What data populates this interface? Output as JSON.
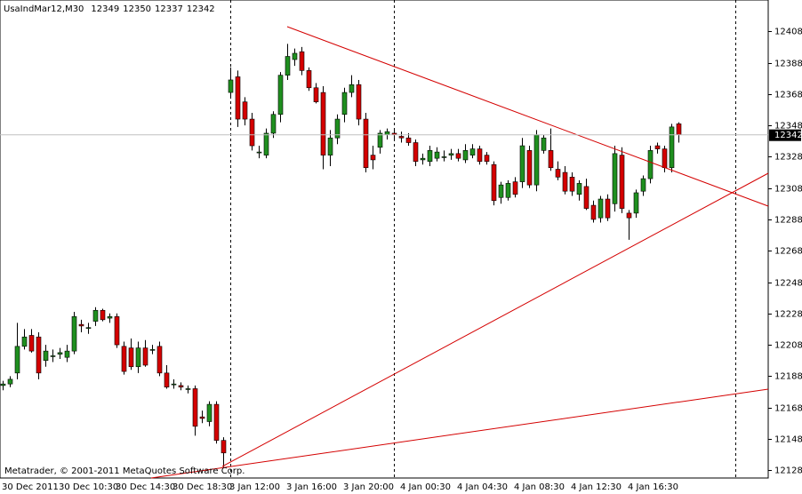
{
  "chart_data": {
    "type": "candlestick",
    "title": "UsaIndMar12,M30",
    "footer": "Metatrader, © 2001-2011 MetaQuotes Software Corp.",
    "up_color": "#1f8f1f",
    "down_color": "#d40000",
    "wick_color": "#000000",
    "ylim": [
      12123,
      12428
    ],
    "yticks": [
      12128,
      12148,
      12168,
      12188,
      12208,
      12228,
      12248,
      12268,
      12288,
      12308,
      12328,
      12348,
      12368,
      12388,
      12408
    ],
    "categories": [
      "30 Dec 2011",
      null,
      null,
      null,
      null,
      null,
      null,
      null,
      "30 Dec 10:30",
      null,
      null,
      null,
      null,
      null,
      null,
      null,
      "30 Dec 14:30",
      null,
      null,
      null,
      null,
      null,
      null,
      null,
      "30 Dec 18:30",
      null,
      null,
      null,
      null,
      null,
      null,
      null,
      "3 Jan 12:00",
      null,
      null,
      null,
      null,
      null,
      null,
      null,
      "3 Jan 16:00",
      null,
      null,
      null,
      null,
      null,
      null,
      null,
      "3 Jan 20:00",
      null,
      null,
      null,
      null,
      null,
      null,
      null,
      "4 Jan 00:30",
      null,
      null,
      null,
      null,
      null,
      null,
      null,
      "4 Jan 04:30",
      null,
      null,
      null,
      null,
      null,
      null,
      null,
      "4 Jan 08:30",
      null,
      null,
      null,
      null,
      null,
      null,
      null,
      "4 Jan 12:30",
      null,
      null,
      null,
      null,
      null,
      null,
      null,
      "4 Jan 16:30",
      null,
      null,
      null,
      null,
      null,
      null,
      null
    ],
    "ohlc": [
      [
        12182,
        12185,
        12179,
        12183
      ],
      [
        12183,
        12188,
        12181,
        12186
      ],
      [
        12190,
        12222,
        12186,
        12207
      ],
      [
        12207,
        12218,
        12205,
        12213
      ],
      [
        12214,
        12218,
        12203,
        12204
      ],
      [
        12213,
        12216,
        12186,
        12190
      ],
      [
        12198,
        12208,
        12194,
        12204
      ],
      [
        12201,
        12205,
        12197,
        12201
      ],
      [
        12202,
        12206,
        12199,
        12203
      ],
      [
        12200,
        12208,
        12197,
        12204
      ],
      [
        12204,
        12229,
        12202,
        12226
      ],
      [
        12221,
        12224,
        12216,
        12220
      ],
      [
        12219,
        12222,
        12215,
        12219
      ],
      [
        12223,
        12232,
        12220,
        12230
      ],
      [
        12230,
        12231,
        12223,
        12224
      ],
      [
        12225,
        12228,
        12222,
        12226
      ],
      [
        12226,
        12228,
        12206,
        12208
      ],
      [
        12207,
        12210,
        12189,
        12191
      ],
      [
        12206,
        12212,
        12192,
        12194
      ],
      [
        12194,
        12210,
        12190,
        12206
      ],
      [
        12206,
        12211,
        12194,
        12195
      ],
      [
        12205,
        12208,
        12202,
        12205
      ],
      [
        12207,
        12210,
        12188,
        12190
      ],
      [
        12190,
        12195,
        12180,
        12181
      ],
      [
        12183,
        12186,
        12180,
        12183
      ],
      [
        12182,
        12184,
        12179,
        12181
      ],
      [
        12180,
        12182,
        12177,
        12180
      ],
      [
        12180,
        12182,
        12150,
        12156
      ],
      [
        12162,
        12166,
        12158,
        12161
      ],
      [
        12159,
        12172,
        12156,
        12170
      ],
      [
        12170,
        12172,
        12145,
        12147
      ],
      [
        12147,
        12149,
        12130,
        12139
      ],
      [
        12369,
        12385,
        12366,
        12377
      ],
      [
        12379,
        12383,
        12347,
        12352
      ],
      [
        12363,
        12366,
        12348,
        12352
      ],
      [
        12352,
        12356,
        12332,
        12335
      ],
      [
        12331,
        12335,
        12327,
        12331
      ],
      [
        12329,
        12346,
        12327,
        12343
      ],
      [
        12343,
        12357,
        12340,
        12355
      ],
      [
        12355,
        12382,
        12350,
        12380
      ],
      [
        12380,
        12400,
        12377,
        12392
      ],
      [
        12390,
        12397,
        12386,
        12394
      ],
      [
        12395,
        12398,
        12380,
        12383
      ],
      [
        12383,
        12385,
        12370,
        12372
      ],
      [
        12372,
        12375,
        12362,
        12363
      ],
      [
        12369,
        12373,
        12320,
        12329
      ],
      [
        12329,
        12345,
        12322,
        12340
      ],
      [
        12340,
        12355,
        12336,
        12352
      ],
      [
        12355,
        12372,
        12350,
        12369
      ],
      [
        12369,
        12380,
        12366,
        12374
      ],
      [
        12374,
        12377,
        12348,
        12352
      ],
      [
        12352,
        12356,
        12318,
        12321
      ],
      [
        12329,
        12335,
        12320,
        12326
      ],
      [
        12334,
        12345,
        12330,
        12343
      ],
      [
        12342,
        12346,
        12339,
        12344
      ],
      [
        12343,
        12345,
        12339,
        12342
      ],
      [
        12341,
        12344,
        12337,
        12340
      ],
      [
        12340,
        12343,
        12335,
        12337
      ],
      [
        12337,
        12339,
        12322,
        12325
      ],
      [
        12326,
        12330,
        12323,
        12327
      ],
      [
        12325,
        12335,
        12322,
        12332
      ],
      [
        12327,
        12334,
        12325,
        12331
      ],
      [
        12328,
        12332,
        12325,
        12328
      ],
      [
        12329,
        12333,
        12326,
        12330
      ],
      [
        12330,
        12333,
        12325,
        12327
      ],
      [
        12326,
        12336,
        12324,
        12332
      ],
      [
        12329,
        12336,
        12327,
        12333
      ],
      [
        12333,
        12335,
        12323,
        12325
      ],
      [
        12329,
        12331,
        12323,
        12325
      ],
      [
        12323,
        12325,
        12297,
        12300
      ],
      [
        12302,
        12312,
        12298,
        12310
      ],
      [
        12302,
        12313,
        12300,
        12311
      ],
      [
        12312,
        12315,
        12302,
        12304
      ],
      [
        12312,
        12340,
        12308,
        12335
      ],
      [
        12332,
        12335,
        12308,
        12310
      ],
      [
        12310,
        12345,
        12306,
        12342
      ],
      [
        12332,
        12342,
        12330,
        12340
      ],
      [
        12332,
        12346,
        12319,
        12321
      ],
      [
        12320,
        12325,
        12313,
        12315
      ],
      [
        12318,
        12322,
        12304,
        12306
      ],
      [
        12315,
        12318,
        12303,
        12306
      ],
      [
        12304,
        12313,
        12300,
        12311
      ],
      [
        12309,
        12314,
        12294,
        12295
      ],
      [
        12297,
        12300,
        12286,
        12288
      ],
      [
        12289,
        12303,
        12286,
        12301
      ],
      [
        12301,
        12304,
        12287,
        12289
      ],
      [
        12298,
        12335,
        12293,
        12330
      ],
      [
        12329,
        12334,
        12292,
        12295
      ],
      [
        12292,
        12294,
        12275,
        12289
      ],
      [
        12292,
        12307,
        12289,
        12305
      ],
      [
        12306,
        12316,
        12303,
        12314
      ],
      [
        12314,
        12335,
        12311,
        12332
      ],
      [
        12335,
        12337,
        12330,
        12333
      ],
      [
        12333,
        12335,
        12318,
        12321
      ],
      [
        12321,
        12349,
        12318,
        12347
      ],
      [
        12349,
        12350,
        12337,
        12342
      ]
    ]
  }
}
